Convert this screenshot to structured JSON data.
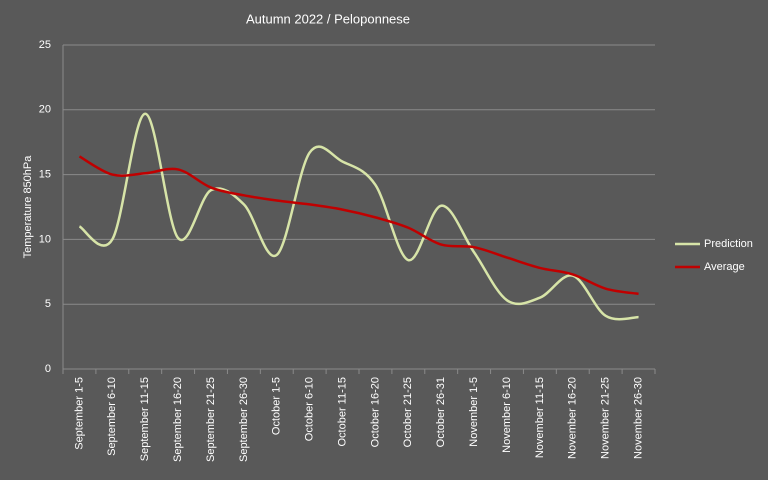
{
  "chart_data": {
    "type": "line",
    "title": "Autumn 2022 / Peloponnese",
    "y_label": "Temperature 850hPa",
    "categories": [
      "September 1-5",
      "September 6-10",
      "September 11-15",
      "September 16-20",
      "September 21-25",
      "September 26-30",
      "October 1-5",
      "October 6-10",
      "October 11-15",
      "October 16-20",
      "October 21-25",
      "October 26-31",
      "November 1-5",
      "November 6-10",
      "November 11-15",
      "November 16-20",
      "November 21-25",
      "November 26-30"
    ],
    "series": [
      {
        "name": "Prediction",
        "color": "#d7e4a8",
        "values": [
          11,
          10,
          19.7,
          10.1,
          13.8,
          12.7,
          8.8,
          16.7,
          16,
          14.2,
          8.4,
          12.6,
          9,
          5.3,
          5.5,
          7.2,
          4.1,
          4
        ]
      },
      {
        "name": "Average",
        "color": "#c00000",
        "values": [
          16.4,
          15,
          15.1,
          15.4,
          14,
          13.4,
          13,
          12.7,
          12.3,
          11.7,
          10.9,
          9.6,
          9.4,
          8.6,
          7.8,
          7.3,
          6.2,
          5.8
        ]
      }
    ],
    "ylim": [
      0,
      25
    ],
    "yticks": [
      0,
      5,
      10,
      15,
      20,
      25
    ],
    "grid": true,
    "smooth": true,
    "legend": "right"
  }
}
